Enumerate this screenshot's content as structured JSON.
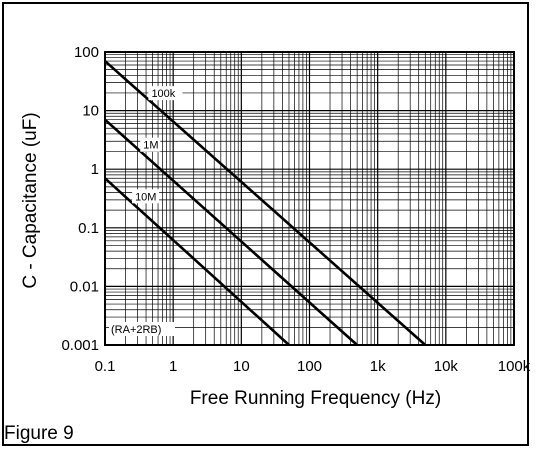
{
  "caption": "Figure 9",
  "chart_data": {
    "type": "line",
    "title": "",
    "xlabel": "Free Running Frequency (Hz)",
    "ylabel": "C - Capacitance (uF)",
    "xscale": "log",
    "yscale": "log",
    "xlim": [
      0.1,
      100000
    ],
    "ylim": [
      0.001,
      100
    ],
    "x_ticks": [
      0.1,
      1,
      10,
      100,
      1000,
      10000,
      100000
    ],
    "x_tick_labels": [
      "0.1",
      "1",
      "10",
      "100",
      "1k",
      "10k",
      "100k"
    ],
    "y_ticks": [
      0.001,
      0.01,
      0.1,
      1,
      10,
      100
    ],
    "y_tick_labels": [
      "0.001",
      "0.01",
      "0.1",
      "1",
      "10",
      "100"
    ],
    "grid": true,
    "series": [
      {
        "name": "100k",
        "x": [
          0.1,
          5000
        ],
        "y": [
          70,
          0.001
        ]
      },
      {
        "name": "1M",
        "x": [
          0.1,
          500
        ],
        "y": [
          7,
          0.001
        ]
      },
      {
        "name": "10M",
        "x": [
          0.1,
          50
        ],
        "y": [
          0.7,
          0.001
        ]
      }
    ],
    "annotations": [
      "(RA+2RB)"
    ]
  }
}
